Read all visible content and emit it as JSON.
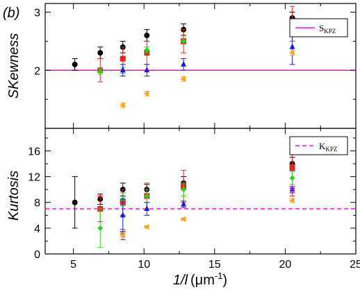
{
  "panel_tag": "(b)",
  "xlabel_main": "1/l",
  "xlabel_unit": "(μm",
  "xlabel_exp": "-1",
  "xlabel_close": ")",
  "colors": {
    "black": "#000000",
    "red": "#e8231e",
    "green": "#2ecf1e",
    "blue": "#1a1ad6",
    "purple": "#7b1fd0",
    "orange": "#f5a623",
    "ref": "#ff00ff"
  },
  "chart_data": [
    {
      "type": "scatter",
      "name_tag": "skewness",
      "ylabel": "SKewness",
      "xlim": [
        3,
        25
      ],
      "ylim": [
        1.0,
        3.15
      ],
      "xticks": [
        5,
        10,
        15,
        20,
        25
      ],
      "yticks": [
        2,
        3
      ],
      "legend": {
        "label": "S",
        "sub": "KPZ",
        "placement": "top-right"
      },
      "reference_line": {
        "y": 2.0,
        "style": "solid",
        "color": "#ff00ff"
      },
      "series": [
        {
          "marker": "circle",
          "color": "#000000",
          "points": [
            [
              5.1,
              2.1,
              0.1
            ],
            [
              6.9,
              2.3,
              0.1
            ],
            [
              8.5,
              2.4,
              0.1
            ],
            [
              10.2,
              2.6,
              0.1
            ],
            [
              12.8,
              2.7,
              0.1
            ],
            [
              20.5,
              2.9,
              0.1
            ]
          ]
        },
        {
          "marker": "square",
          "color": "#e8231e",
          "points": [
            [
              6.9,
              2.0,
              0.2
            ],
            [
              8.5,
              2.2,
              0.2
            ],
            [
              10.2,
              2.3,
              0.2
            ],
            [
              12.8,
              2.5,
              0.2
            ],
            [
              20.5,
              2.8,
              0.3
            ]
          ]
        },
        {
          "marker": "diamond",
          "color": "#2ecf1e",
          "points": [
            [
              6.9,
              1.98,
              0.05
            ],
            [
              8.5,
              2.0,
              0.05
            ],
            [
              10.2,
              2.35,
              0.05
            ],
            [
              12.8,
              2.5,
              0.05
            ],
            [
              20.5,
              2.7,
              0.05
            ]
          ]
        },
        {
          "marker": "triangle-up",
          "color": "#1a1ad6",
          "points": [
            [
              8.5,
              2.0,
              0.1
            ],
            [
              10.2,
              2.0,
              0.1
            ],
            [
              12.8,
              2.1,
              0.1
            ],
            [
              20.5,
              2.4,
              0.3
            ]
          ]
        },
        {
          "marker": "triangle-left",
          "color": "#f5a623",
          "points": [
            [
              8.5,
              1.4,
              0.04
            ],
            [
              10.2,
              1.6,
              0.04
            ],
            [
              12.8,
              1.85,
              0.04
            ],
            [
              20.5,
              2.3,
              0.04
            ]
          ]
        }
      ]
    },
    {
      "type": "scatter",
      "name_tag": "kurtosis",
      "ylabel": "Kurtosis",
      "xlim": [
        3,
        25
      ],
      "ylim": [
        0,
        19.5
      ],
      "xticks": [
        5,
        10,
        15,
        20,
        25
      ],
      "yticks": [
        0,
        4,
        8,
        12,
        16
      ],
      "legend": {
        "label": "K",
        "sub": "KPZ",
        "placement": "top-right"
      },
      "reference_line": {
        "y": 7.0,
        "style": "dashed",
        "color": "#ff00ff"
      },
      "series": [
        {
          "marker": "circle",
          "color": "#000000",
          "points": [
            [
              5.1,
              8.0,
              4.0
            ],
            [
              6.9,
              8.5,
              0.8
            ],
            [
              8.5,
              10.0,
              1.0
            ],
            [
              10.2,
              10.0,
              0.8
            ],
            [
              12.8,
              11.0,
              1.0
            ],
            [
              20.5,
              14.0,
              1.0
            ]
          ]
        },
        {
          "marker": "square",
          "color": "#e8231e",
          "points": [
            [
              6.9,
              7.0,
              2.0
            ],
            [
              8.5,
              8.0,
              2.0
            ],
            [
              10.2,
              9.0,
              2.0
            ],
            [
              12.8,
              10.5,
              2.5
            ],
            [
              20.5,
              13.5,
              4.5
            ]
          ]
        },
        {
          "marker": "diamond",
          "color": "#2ecf1e",
          "points": [
            [
              6.9,
              4.0,
              3.0
            ],
            [
              8.5,
              8.5,
              1.0
            ],
            [
              10.2,
              9.0,
              1.0
            ],
            [
              12.8,
              10.0,
              1.0
            ],
            [
              20.5,
              11.8,
              1.0
            ]
          ]
        },
        {
          "marker": "triangle-up",
          "color": "#1a1ad6",
          "points": [
            [
              8.5,
              6.0,
              2.5
            ],
            [
              10.2,
              7.0,
              1.0
            ],
            [
              12.8,
              7.7,
              0.5
            ],
            [
              20.5,
              10.0,
              0.5
            ]
          ]
        },
        {
          "marker": "triangle-down",
          "color": "#7b1fd0",
          "points": [
            [
              8.5,
              3.0,
              0.8
            ],
            [
              20.5,
              10.0,
              0.5
            ]
          ]
        },
        {
          "marker": "triangle-left",
          "color": "#f5a623",
          "points": [
            [
              8.5,
              2.9,
              0.3
            ],
            [
              10.2,
              4.2,
              0.2
            ],
            [
              12.8,
              5.4,
              0.2
            ],
            [
              20.5,
              8.3,
              0.3
            ]
          ]
        }
      ]
    }
  ]
}
